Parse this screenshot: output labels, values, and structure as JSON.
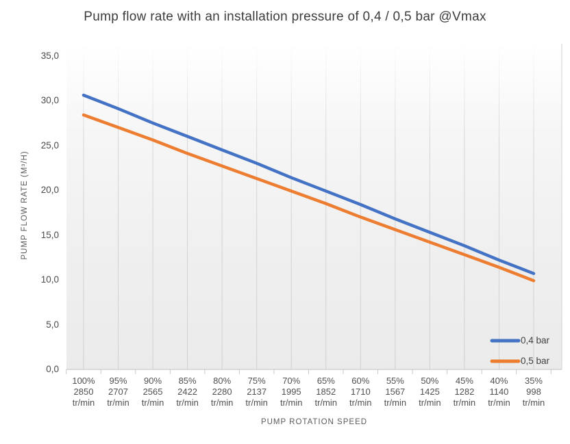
{
  "chart_data": {
    "type": "line",
    "title": "Pump flow rate with an installation pressure of 0,4 / 0,5 bar @Vmax",
    "xlabel": "PUMP ROTATION SPEED",
    "ylabel": "PUMP FLOW RATE (M³/H)",
    "ylim": [
      0,
      35
    ],
    "ytick_step": 5,
    "ytick_labels": [
      "0,0",
      "5,0",
      "10,0",
      "15,0",
      "20,0",
      "25,0",
      "30,0",
      "35,0"
    ],
    "grid": "vertical-only",
    "legend_position": "inside-bottom-right",
    "categories": [
      {
        "pct": "100%",
        "rpm": "2850",
        "unit": "tr/min"
      },
      {
        "pct": "95%",
        "rpm": "2707",
        "unit": "tr/min"
      },
      {
        "pct": "90%",
        "rpm": "2565",
        "unit": "tr/min"
      },
      {
        "pct": "85%",
        "rpm": "2422",
        "unit": "tr/min"
      },
      {
        "pct": "80%",
        "rpm": "2280",
        "unit": "tr/min"
      },
      {
        "pct": "75%",
        "rpm": "2137",
        "unit": "tr/min"
      },
      {
        "pct": "70%",
        "rpm": "1995",
        "unit": "tr/min"
      },
      {
        "pct": "65%",
        "rpm": "1852",
        "unit": "tr/min"
      },
      {
        "pct": "60%",
        "rpm": "1710",
        "unit": "tr/min"
      },
      {
        "pct": "55%",
        "rpm": "1567",
        "unit": "tr/min"
      },
      {
        "pct": "50%",
        "rpm": "1425",
        "unit": "tr/min"
      },
      {
        "pct": "45%",
        "rpm": "1282",
        "unit": "tr/min"
      },
      {
        "pct": "40%",
        "rpm": "1140",
        "unit": "tr/min"
      },
      {
        "pct": "35%",
        "rpm": "998",
        "unit": "tr/min"
      }
    ],
    "series": [
      {
        "name": "0,4 bar",
        "color": "#4472C4",
        "values": [
          30.6,
          29.1,
          27.5,
          26.0,
          24.5,
          23.0,
          21.4,
          19.9,
          18.4,
          16.8,
          15.3,
          13.8,
          12.2,
          10.7
        ]
      },
      {
        "name": "0,5 bar",
        "color": "#ED7D31",
        "values": [
          28.4,
          27.0,
          25.6,
          24.1,
          22.7,
          21.3,
          19.9,
          18.5,
          17.0,
          15.6,
          14.2,
          12.8,
          11.4,
          9.9
        ]
      }
    ],
    "colors": {
      "grid": "#d6d6d6",
      "axis": "#c9c9c9",
      "plot_bg_top": "#ffffff",
      "plot_bg_bottom": "#ebebeb"
    }
  }
}
